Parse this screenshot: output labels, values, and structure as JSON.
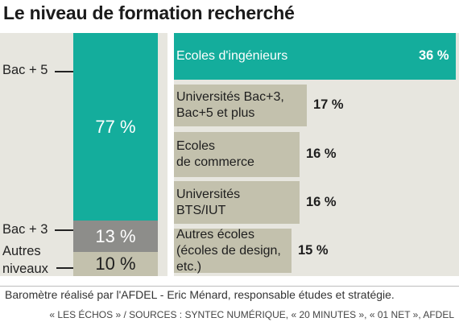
{
  "colors": {
    "teal": "#14ad9c",
    "gray": "#8d8d8a",
    "beige": "#c3c1ad",
    "panel": "#e7e6df"
  },
  "chart_data": [
    {
      "type": "bar",
      "title": "Le niveau de formation recherché",
      "stacked": true,
      "categories": [
        "Bac + 5",
        "Bac + 3",
        "Autres niveaux"
      ],
      "values": [
        77,
        13,
        10
      ],
      "value_labels": [
        "77 %",
        "13 %",
        "10 %"
      ],
      "segment_labels": [
        "Bac + 5",
        "Bac + 3",
        "Autres\nniveaux"
      ],
      "unit": "%"
    },
    {
      "type": "bar",
      "orientation": "horizontal",
      "categories": [
        "Ecoles d'ingénieurs",
        "Universités Bac+3, Bac+5 et plus",
        "Ecoles de commerce",
        "Universités BTS/IUT",
        "Autres écoles (écoles de design, etc.)"
      ],
      "category_labels": [
        "Ecoles d'ingénieurs",
        "Universités Bac+3,\nBac+5 et plus",
        "Ecoles\nde commerce",
        "Universités\nBTS/IUT",
        "Autres écoles\n(écoles de design,\netc.)"
      ],
      "values": [
        36,
        17,
        16,
        16,
        15
      ],
      "value_labels": [
        "36 %",
        "17 %",
        "16 %",
        "16 %",
        "15 %"
      ],
      "unit": "%"
    }
  ],
  "footer": {
    "note": "Baromètre réalisé par l'AFDEL - Eric Ménard, responsable études et stratégie.",
    "source": "« LES ÉCHOS » / SOURCES : SYNTEC NUMÉRIQUE, « 20 MINUTES », « 01 NET », AFDEL"
  }
}
